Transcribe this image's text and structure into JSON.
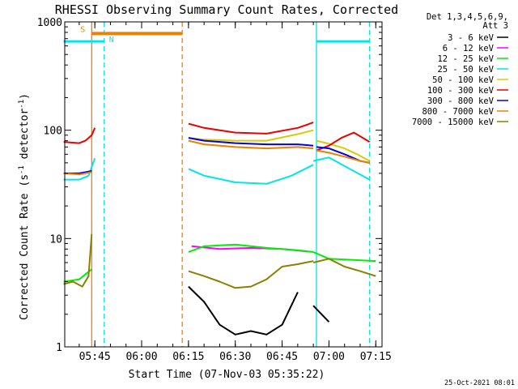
{
  "chart_data": {
    "type": "line",
    "title": "RHESSI Observing Summary Count Rates, Corrected",
    "xlabel": "Start Time (07-Nov-03 05:35:22)",
    "ylabel": "Corrected Count Rate (s⁻¹ detector⁻¹)",
    "yscale": "log",
    "ylim": [
      1,
      1000
    ],
    "y_ticks": [
      1,
      10,
      100,
      1000
    ],
    "y_tick_labels": [
      "1",
      "10",
      "100",
      "1000"
    ],
    "xlim": [
      "05:35:22",
      "07:17:00"
    ],
    "x_ticks": [
      "05:45",
      "06:00",
      "06:15",
      "06:30",
      "06:45",
      "07:00",
      "07:15"
    ],
    "legend": {
      "header": [
        "Det 1,3,4,5,6,9,",
        "Att 3"
      ],
      "entries": [
        {
          "label": "3 - 6 keV",
          "color": "#000000"
        },
        {
          "label": "6 - 12 keV",
          "color": "#ff00ff"
        },
        {
          "label": "12 - 25 keV",
          "color": "#00ee00"
        },
        {
          "label": "25 - 50 keV",
          "color": "#00e5ee"
        },
        {
          "label": "50 - 100 keV",
          "color": "#d8cc00"
        },
        {
          "label": "100 - 300 keV",
          "color": "#ee0000"
        },
        {
          "label": "300 - 800 keV",
          "color": "#0000ee"
        },
        {
          "label": "800 - 7000 keV",
          "color": "#f07f00"
        },
        {
          "label": "7000 - 15000 keV",
          "color": "#8b8000"
        }
      ],
      "position": "right"
    },
    "series": [
      {
        "name": "3 - 6 keV",
        "color": "#000000",
        "segments": [
          {
            "x": [
              "06:15",
              "06:20",
              "06:25",
              "06:30",
              "06:35",
              "06:40",
              "06:45",
              "06:50"
            ],
            "y": [
              3.6,
              2.6,
              1.6,
              1.3,
              1.4,
              1.3,
              1.6,
              3.2
            ]
          },
          {
            "x": [
              "06:55",
              "07:00"
            ],
            "y": [
              2.4,
              1.7
            ]
          }
        ]
      },
      {
        "name": "6 - 12 keV",
        "color": "#ff00ff",
        "segments": [
          {
            "x": [
              "06:16",
              "06:25",
              "06:35",
              "06:45",
              "06:53"
            ],
            "y": [
              8.5,
              8.0,
              8.2,
              8.0,
              7.6
            ]
          }
        ]
      },
      {
        "name": "12 - 25 keV",
        "color": "#00ee00",
        "segments": [
          {
            "x": [
              "05:35",
              "05:40",
              "05:44"
            ],
            "y": [
              4.0,
              4.2,
              5.2
            ]
          },
          {
            "x": [
              "06:15",
              "06:20",
              "06:30",
              "06:40",
              "06:50",
              "06:55"
            ],
            "y": [
              7.5,
              8.5,
              8.8,
              8.2,
              7.8,
              7.5
            ]
          },
          {
            "x": [
              "06:55",
              "07:00",
              "07:15"
            ],
            "y": [
              7.5,
              6.5,
              6.2
            ]
          }
        ]
      },
      {
        "name": "25 - 50 keV",
        "color": "#00e5ee",
        "segments": [
          {
            "x": [
              "05:35",
              "05:40",
              "05:43",
              "05:45"
            ],
            "y": [
              35,
              35,
              38,
              55
            ]
          },
          {
            "x": [
              "06:15",
              "06:20",
              "06:30",
              "06:40",
              "06:48",
              "06:55"
            ],
            "y": [
              44,
              38,
              33,
              32,
              38,
              48
            ]
          },
          {
            "x": [
              "06:55",
              "07:00",
              "07:06",
              "07:13"
            ],
            "y": [
              52,
              56,
              45,
              35
            ]
          }
        ]
      },
      {
        "name": "50 - 100 keV",
        "color": "#d8cc00",
        "segments": [
          {
            "x": [
              "06:15",
              "06:20",
              "06:30",
              "06:40",
              "06:50",
              "06:55"
            ],
            "y": [
              85,
              82,
              80,
              80,
              92,
              100
            ]
          },
          {
            "x": [
              "06:56",
              "07:00",
              "07:05",
              "07:09",
              "07:13"
            ],
            "y": [
              80,
              75,
              68,
              60,
              52
            ]
          }
        ]
      },
      {
        "name": "100 - 300 keV",
        "color": "#ee0000",
        "segments": [
          {
            "x": [
              "05:35",
              "05:40",
              "05:42",
              "05:44",
              "05:45"
            ],
            "y": [
              78,
              76,
              80,
              90,
              105
            ]
          },
          {
            "x": [
              "06:15",
              "06:20",
              "06:30",
              "06:40",
              "06:50",
              "06:55"
            ],
            "y": [
              115,
              105,
              95,
              93,
              105,
              118
            ]
          },
          {
            "x": [
              "06:56",
              "07:00",
              "07:04",
              "07:08",
              "07:13"
            ],
            "y": [
              65,
              72,
              85,
              95,
              78
            ]
          }
        ]
      },
      {
        "name": "300 - 800 keV",
        "color": "#0000ee",
        "segments": [
          {
            "x": [
              "05:35",
              "05:40",
              "05:44"
            ],
            "y": [
              40,
              40,
              42
            ]
          },
          {
            "x": [
              "06:15",
              "06:20",
              "06:30",
              "06:40",
              "06:50",
              "06:55"
            ],
            "y": [
              85,
              80,
              76,
              74,
              74,
              72
            ]
          },
          {
            "x": [
              "06:56",
              "07:00",
              "07:05",
              "07:10",
              "07:13"
            ],
            "y": [
              70,
              68,
              60,
              52,
              50
            ]
          }
        ]
      },
      {
        "name": "800 - 7000 keV",
        "color": "#f07f00",
        "segments": [
          {
            "x": [
              "05:35",
              "05:40",
              "05:44"
            ],
            "y": [
              40,
              39,
              41
            ]
          },
          {
            "x": [
              "06:15",
              "06:20",
              "06:30",
              "06:40",
              "06:50",
              "06:55"
            ],
            "y": [
              80,
              74,
              70,
              68,
              70,
              68
            ]
          },
          {
            "x": [
              "06:56",
              "07:00",
              "07:05",
              "07:10",
              "07:13"
            ],
            "y": [
              65,
              62,
              57,
              52,
              50
            ]
          }
        ]
      },
      {
        "name": "7000 - 15000 keV",
        "color": "#8b8000",
        "segments": [
          {
            "x": [
              "05:35",
              "05:38",
              "05:41",
              "05:43",
              "05:44"
            ],
            "y": [
              3.8,
              4.0,
              3.6,
              4.5,
              11
            ]
          },
          {
            "x": [
              "06:15",
              "06:20",
              "06:25",
              "06:30",
              "06:35",
              "06:40",
              "06:45",
              "06:50",
              "06:55"
            ],
            "y": [
              5.0,
              4.5,
              4.0,
              3.5,
              3.6,
              4.2,
              5.5,
              5.8,
              6.2
            ]
          },
          {
            "x": [
              "06:55",
              "07:00",
              "07:05",
              "07:10",
              "07:15"
            ],
            "y": [
              6.0,
              6.5,
              5.5,
              5.0,
              4.5
            ]
          }
        ]
      }
    ],
    "attenuator_bar": {
      "label": "S",
      "color": "#f07f00",
      "x_start": "05:44",
      "x_end": "06:13",
      "y": 780
    },
    "night_bars": {
      "label": "N",
      "color": "#00e5ee",
      "segments": [
        [
          "05:35",
          "05:48"
        ],
        [
          "06:56",
          "07:13"
        ]
      ],
      "y": 660
    },
    "markers": [
      {
        "x": "05:44",
        "color": "#f07f00",
        "style": "solid"
      },
      {
        "x": "05:48",
        "color": "#00e5ee",
        "style": "dashed"
      },
      {
        "x": "06:13",
        "color": "#f07f00",
        "style": "dashed"
      },
      {
        "x": "06:56",
        "color": "#00e5ee",
        "style": "solid"
      },
      {
        "x": "07:13",
        "color": "#00e5ee",
        "style": "dashed"
      }
    ]
  },
  "footer": {
    "timestamp": "25-Oct-2021 08:01"
  }
}
